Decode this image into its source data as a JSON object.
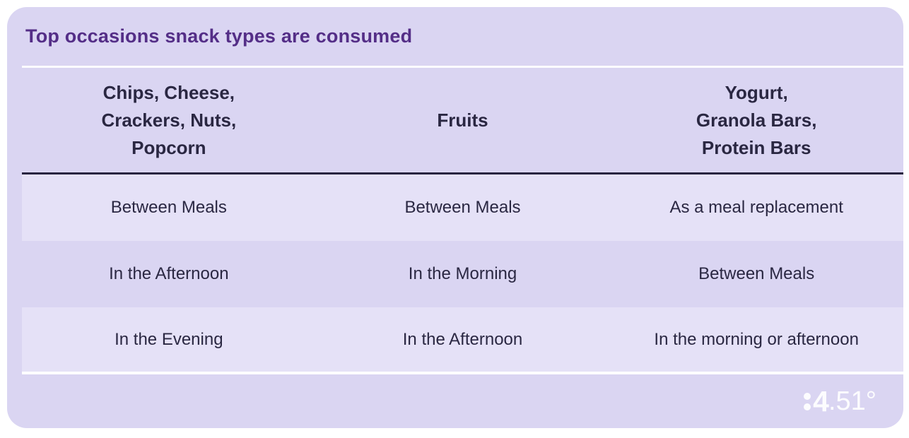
{
  "title": "Top occasions snack types are consumed",
  "table": {
    "columns": [
      {
        "lines": [
          "Chips, Cheese,",
          "Crackers, Nuts,",
          "Popcorn"
        ]
      },
      {
        "lines": [
          "Fruits"
        ]
      },
      {
        "lines": [
          "Yogurt,",
          "Granola Bars,",
          "Protein Bars"
        ]
      }
    ],
    "rows": [
      {
        "cells": [
          "Between Meals",
          "Between Meals",
          "As a meal replacement"
        ]
      },
      {
        "cells": [
          "In the Afternoon",
          "In the Morning",
          "Between Meals"
        ]
      },
      {
        "cells": [
          "In the Evening",
          "In the Afternoon",
          "In the morning or afternoon"
        ]
      }
    ]
  },
  "footer": {
    "logo": {
      "text": "84.51°",
      "four": "4",
      "rest": ".51°"
    }
  },
  "colors": {
    "card_bg": "#DAD5F2",
    "row_highlight": "#E5E1F7",
    "title_text": "#542E87",
    "body_text": "#2A2742",
    "rule_dark": "#282440",
    "rule_light": "#FFFFFF",
    "logo_text": "#FFFFFF"
  },
  "chart_data": {
    "type": "table",
    "title": "Top occasions snack types are consumed",
    "columns": [
      "Chips, Cheese, Crackers, Nuts, Popcorn",
      "Fruits",
      "Yogurt, Granola Bars, Protein Bars"
    ],
    "rows": [
      [
        "Between Meals",
        "Between Meals",
        "As a meal replacement"
      ],
      [
        "In the Afternoon",
        "In the Morning",
        "Between Meals"
      ],
      [
        "In the Evening",
        "In the Afternoon",
        "In the morning or afternoon"
      ]
    ],
    "legend_position": "none",
    "grid": "horizontal-rules"
  }
}
